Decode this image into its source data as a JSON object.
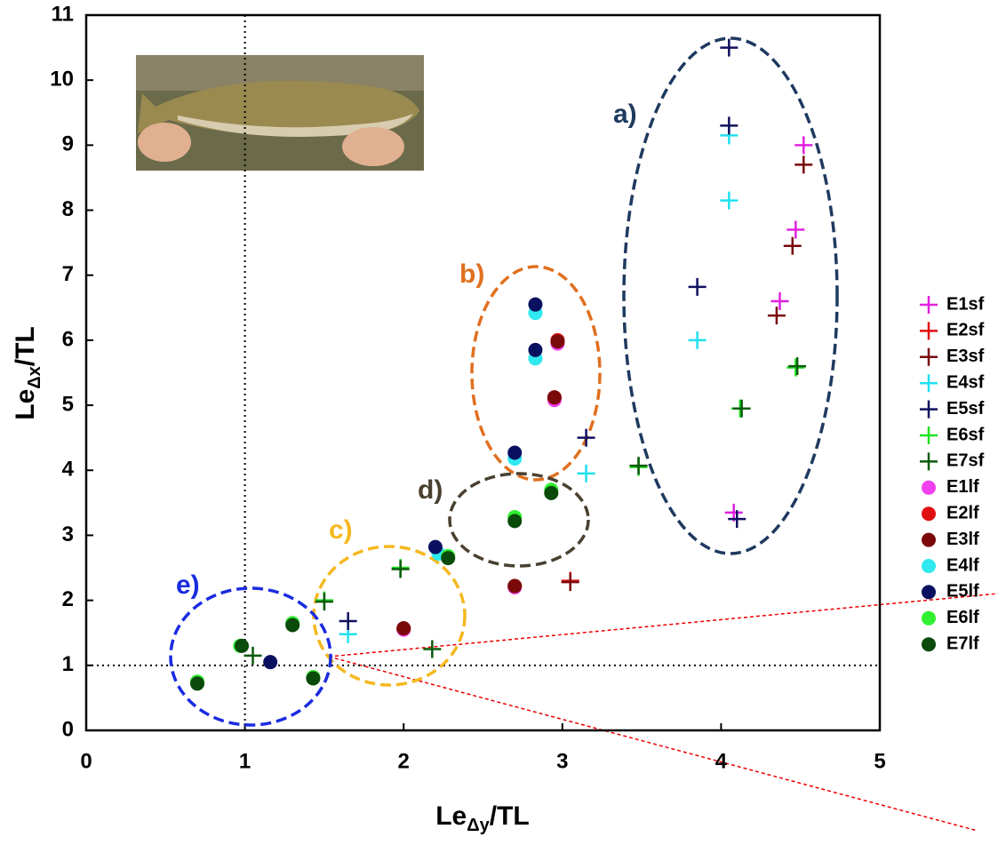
{
  "chart_data": {
    "type": "scatter",
    "xlabel": [
      "Le",
      "Δy",
      "/TL"
    ],
    "ylabel": [
      "Le",
      "Δx",
      "/TL"
    ],
    "xlim": [
      0,
      5
    ],
    "ylim": [
      0,
      11
    ],
    "xticks": [
      0,
      1,
      2,
      3,
      4,
      5
    ],
    "yticks": [
      0,
      1,
      2,
      3,
      4,
      5,
      6,
      7,
      8,
      9,
      10,
      11
    ],
    "reference_lines": {
      "x": 1,
      "y": 1
    },
    "series": [
      {
        "name": "E1sf",
        "color": "#e020e0",
        "marker": "plus",
        "x": [
          4.52,
          4.47,
          4.37,
          4.08
        ],
        "values": [
          9.0,
          7.7,
          6.6,
          3.35
        ]
      },
      {
        "name": "E2sf",
        "color": "#e01010",
        "marker": "plus",
        "x": [
          3.05
        ],
        "values": [
          2.3
        ]
      },
      {
        "name": "E3sf",
        "color": "#7a0a0a",
        "marker": "plus",
        "x": [
          4.52,
          4.45,
          4.35,
          3.05
        ],
        "values": [
          8.7,
          7.45,
          6.38,
          2.28
        ]
      },
      {
        "name": "E4sf",
        "color": "#20e0f0",
        "marker": "plus",
        "x": [
          4.05,
          4.05,
          3.85,
          3.15,
          1.65
        ],
        "values": [
          9.15,
          8.15,
          6.0,
          3.95,
          1.48
        ]
      },
      {
        "name": "E5sf",
        "color": "#101060",
        "marker": "plus",
        "x": [
          4.05,
          4.05,
          3.85,
          3.15,
          4.1,
          1.65
        ],
        "values": [
          10.5,
          9.3,
          6.82,
          4.5,
          3.25,
          1.68
        ]
      },
      {
        "name": "E6sf",
        "color": "#20e020",
        "marker": "plus",
        "x": [
          4.47,
          4.12,
          3.48,
          1.98,
          1.5
        ],
        "values": [
          5.58,
          4.95,
          4.05,
          2.5,
          2.0
        ]
      },
      {
        "name": "E7sf",
        "color": "#0a5a0a",
        "marker": "plus",
        "x": [
          4.48,
          4.13,
          3.48,
          1.98,
          1.5,
          2.18,
          1.05
        ],
        "values": [
          5.6,
          4.95,
          4.07,
          2.48,
          1.98,
          1.25,
          1.15
        ]
      },
      {
        "name": "E1lf",
        "color": "#f040f0",
        "marker": "circle",
        "x": [
          2.97,
          2.95,
          2.7,
          2.0
        ],
        "values": [
          5.95,
          5.08,
          2.2,
          1.55
        ]
      },
      {
        "name": "E2lf",
        "color": "#e01010",
        "marker": "circle",
        "x": [
          2.97,
          2.95,
          2.7,
          2.0
        ],
        "values": [
          6.0,
          5.12,
          2.22,
          1.57
        ]
      },
      {
        "name": "E3lf",
        "color": "#7a0a0a",
        "marker": "circle",
        "x": [
          2.97,
          2.95,
          2.7,
          2.0
        ],
        "values": [
          5.98,
          5.12,
          2.22,
          1.57
        ]
      },
      {
        "name": "E4lf",
        "color": "#30e8f0",
        "marker": "circle",
        "x": [
          2.83,
          2.83,
          2.7,
          2.22
        ],
        "values": [
          6.42,
          5.72,
          4.18,
          2.72
        ]
      },
      {
        "name": "E5lf",
        "color": "#0a1060",
        "marker": "circle",
        "x": [
          2.83,
          2.83,
          2.7,
          2.2,
          1.16
        ],
        "values": [
          6.55,
          5.85,
          4.27,
          2.82,
          1.05
        ]
      },
      {
        "name": "E6lf",
        "color": "#30f030",
        "marker": "circle",
        "x": [
          2.93,
          2.7,
          2.28,
          1.3,
          0.97,
          1.43,
          0.7
        ],
        "values": [
          3.7,
          3.28,
          2.68,
          1.65,
          1.3,
          0.82,
          0.75
        ]
      },
      {
        "name": "E7lf",
        "color": "#0a4a0a",
        "marker": "circle",
        "x": [
          2.93,
          2.7,
          2.28,
          1.3,
          0.98,
          1.43,
          0.7
        ],
        "values": [
          3.65,
          3.22,
          2.65,
          1.62,
          1.3,
          0.8,
          0.72
        ]
      }
    ],
    "annotations": [
      {
        "text": "a)",
        "color": "#1f3a5f"
      },
      {
        "text": "b)",
        "color": "#e07020"
      },
      {
        "text": "c)",
        "color": "#f5b820"
      },
      {
        "text": "d)",
        "color": "#4a4030"
      },
      {
        "text": "e)",
        "color": "#1a2be0"
      }
    ]
  }
}
